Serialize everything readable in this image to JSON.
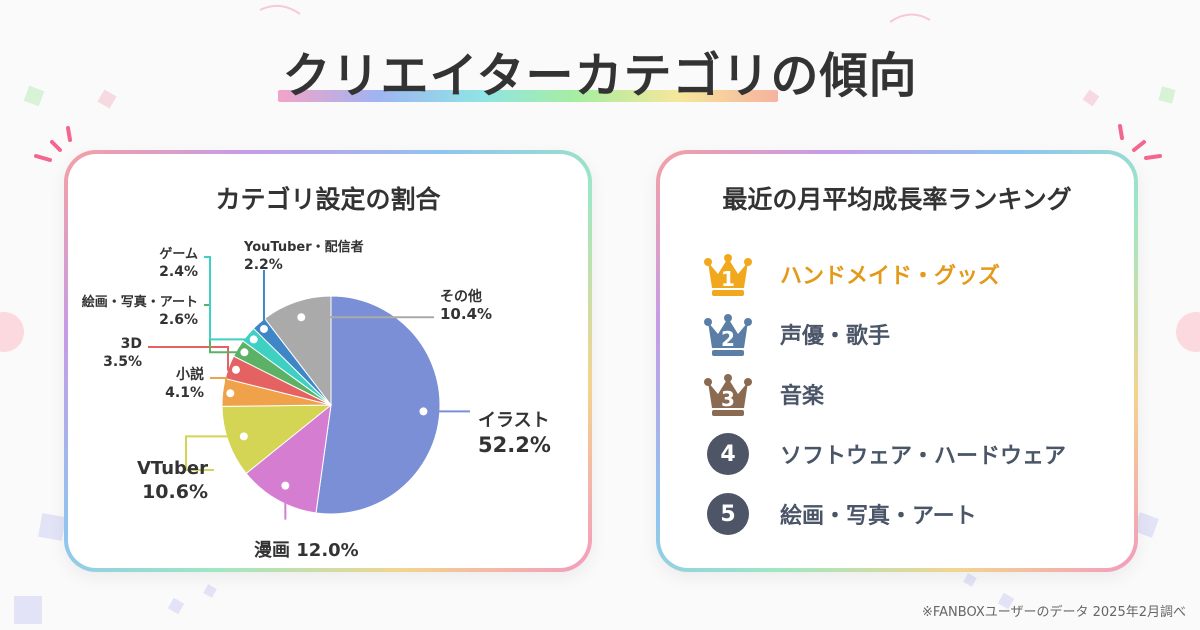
{
  "title": "クリエイターカテゴリの傾向",
  "left_panel": {
    "title": "カテゴリ設定の割合"
  },
  "right_panel": {
    "title": "最近の月平均成長率ランキング",
    "ranking": [
      {
        "rank": "1",
        "label": "ハンドメイド・グッズ",
        "color": "#e39a1b"
      },
      {
        "rank": "2",
        "label": "声優・歌手",
        "color": "#4a5568"
      },
      {
        "rank": "3",
        "label": "音楽",
        "color": "#4a5568"
      },
      {
        "rank": "4",
        "label": "ソフトウェア・ハードウェア",
        "color": "#4a5568"
      },
      {
        "rank": "5",
        "label": "絵画・写真・アート",
        "color": "#4a5568"
      }
    ],
    "badge_colors": {
      "gold": "#f2a81d",
      "silver": "#5b7ea6",
      "bronze": "#8b6a52",
      "plain": "#4e5566"
    }
  },
  "chart_data": {
    "type": "pie",
    "title": "カテゴリ設定の割合",
    "slices": [
      {
        "label": "イラスト",
        "value": 52.2,
        "value_text": "52.2%",
        "color": "#7b8fd6"
      },
      {
        "label": "漫画",
        "value": 12.0,
        "value_text": "12.0%",
        "color": "#d57ed1"
      },
      {
        "label": "VTuber",
        "value": 10.6,
        "value_text": "10.6%",
        "color": "#d4d455"
      },
      {
        "label": "小説",
        "value": 4.1,
        "value_text": "4.1%",
        "color": "#f0a24a"
      },
      {
        "label": "3D",
        "value": 3.5,
        "value_text": "3.5%",
        "color": "#e46262"
      },
      {
        "label": "絵画・写真・アート",
        "value": 2.6,
        "value_text": "2.6%",
        "color": "#5bb266"
      },
      {
        "label": "ゲーム",
        "value": 2.4,
        "value_text": "2.4%",
        "color": "#3fd0c4"
      },
      {
        "label": "YouTuber・配信者",
        "value": 2.2,
        "value_text": "2.2%",
        "color": "#3f86c6"
      },
      {
        "label": "その他",
        "value": 10.4,
        "value_text": "10.4%",
        "color": "#aaaaaa"
      }
    ]
  },
  "footnote": "※FANBOXユーザーのデータ 2025年2月調べ"
}
